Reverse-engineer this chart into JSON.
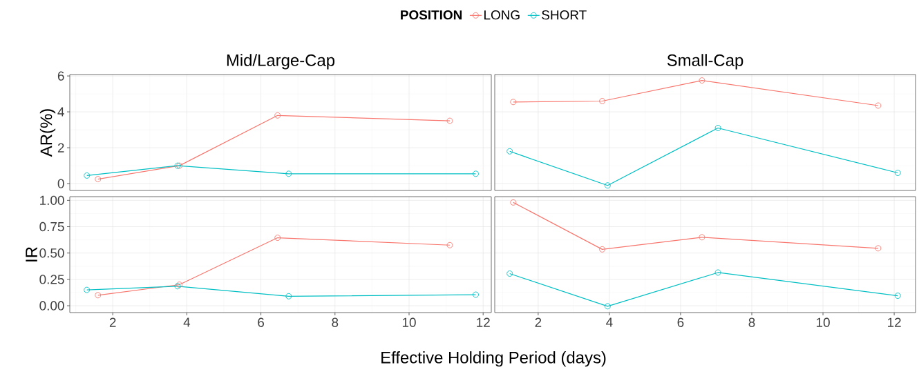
{
  "chart_data": [
    {
      "type": "line",
      "title": "Mid/Large-Cap",
      "ylabel": "AR(%)",
      "legend_title": "POSITION",
      "legend": "top",
      "grid": true,
      "marker": "circle",
      "line_style": "solid",
      "tick_labels": "y",
      "xlim": [
        0.84,
        12.22
      ],
      "ylim": [
        -0.38,
        6.08
      ],
      "xticks": [
        2,
        4,
        6,
        8,
        10,
        12
      ],
      "yticks": [
        0,
        2,
        4,
        6
      ],
      "series": [
        {
          "name": "LONG",
          "color": "#f8766d",
          "x": [
            1.6,
            3.8,
            6.45,
            11.1
          ],
          "values": [
            0.25,
            1.0,
            3.8,
            3.5
          ]
        },
        {
          "name": "SHORT",
          "color": "#00bfc4",
          "x": [
            1.3,
            3.75,
            6.75,
            11.8
          ],
          "values": [
            0.45,
            1.0,
            0.55,
            0.55
          ]
        }
      ]
    },
    {
      "type": "line",
      "title": "Small-Cap",
      "grid": true,
      "marker": "circle",
      "line_style": "solid",
      "tick_labels": false,
      "xlim": [
        0.78,
        12.6
      ],
      "ylim": [
        -0.38,
        6.08
      ],
      "xticks": [
        2,
        4,
        6,
        8,
        10,
        12
      ],
      "yticks": [
        0,
        2,
        4,
        6
      ],
      "series": [
        {
          "color": "#f8766d",
          "x": [
            1.3,
            3.8,
            6.6,
            11.55
          ],
          "values": [
            4.55,
            4.6,
            5.75,
            4.35
          ]
        },
        {
          "color": "#00bfc4",
          "x": [
            1.2,
            3.95,
            7.05,
            12.1
          ],
          "values": [
            1.8,
            -0.1,
            3.1,
            0.6
          ]
        }
      ]
    },
    {
      "type": "line",
      "ylabel": "IR",
      "xlabel": "Effective Holding Period (days)",
      "grid": true,
      "marker": "circle",
      "line_style": "solid",
      "xlim": [
        0.84,
        12.22
      ],
      "ylim": [
        -0.065,
        1.035
      ],
      "xticks": [
        2,
        4,
        6,
        8,
        10,
        12
      ],
      "yticks": [
        {
          "value": 0,
          "label": "0.00"
        },
        {
          "value": 0.25,
          "label": "0.25"
        },
        {
          "value": 0.5,
          "label": "0.50"
        },
        {
          "value": 0.75,
          "label": "0.75"
        },
        {
          "value": 1,
          "label": "1.00"
        }
      ],
      "series": [
        {
          "color": "#f8766d",
          "x": [
            1.6,
            3.8,
            6.45,
            11.1
          ],
          "values": [
            0.1,
            0.2,
            0.645,
            0.575
          ]
        },
        {
          "color": "#00bfc4",
          "x": [
            1.3,
            3.75,
            6.75,
            11.8
          ],
          "values": [
            0.15,
            0.185,
            0.09,
            0.105
          ]
        }
      ]
    },
    {
      "type": "line",
      "grid": true,
      "marker": "circle",
      "line_style": "solid",
      "tick_labels": "x",
      "xlim": [
        0.78,
        12.6
      ],
      "ylim": [
        -0.065,
        1.035
      ],
      "xticks": [
        2,
        4,
        6,
        8,
        10,
        12
      ],
      "yticks": [
        0,
        0.25,
        0.5,
        0.75,
        1
      ],
      "series": [
        {
          "color": "#f8766d",
          "x": [
            1.3,
            3.8,
            6.6,
            11.55
          ],
          "values": [
            0.98,
            0.535,
            0.65,
            0.545
          ]
        },
        {
          "color": "#00bfc4",
          "x": [
            1.2,
            3.95,
            7.05,
            12.1
          ],
          "values": [
            0.305,
            -0.005,
            0.315,
            0.095
          ]
        }
      ]
    }
  ]
}
